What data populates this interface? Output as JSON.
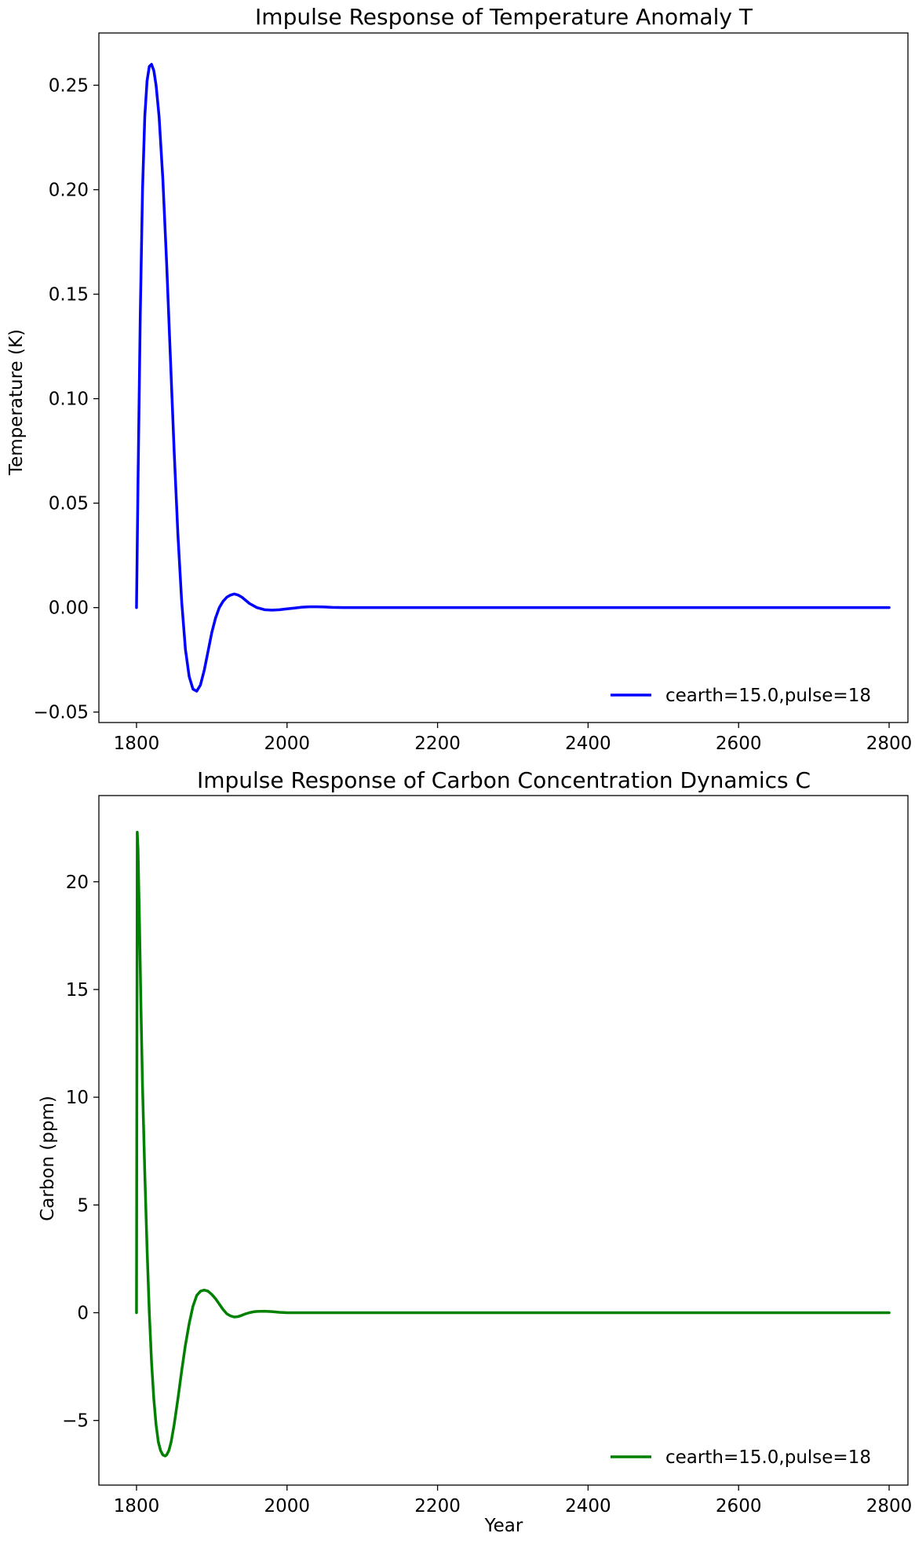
{
  "chart_data": [
    {
      "type": "line",
      "title": "Impulse Response of Temperature Anomaly T",
      "xlabel": "",
      "ylabel": "Temperature (K)",
      "xlim": [
        1750,
        2825
      ],
      "ylim": [
        -0.055,
        0.275
      ],
      "x_ticks": [
        1800,
        2000,
        2200,
        2400,
        2600,
        2800
      ],
      "x_tick_labels": [
        "1800",
        "2000",
        "2200",
        "2400",
        "2600",
        "2800"
      ],
      "y_ticks": [
        -0.05,
        0.0,
        0.05,
        0.1,
        0.15,
        0.2,
        0.25
      ],
      "y_tick_labels": [
        "−0.05",
        "0.00",
        "0.05",
        "0.10",
        "0.15",
        "0.20",
        "0.25"
      ],
      "grid": false,
      "legend_position": "lower-right",
      "series": [
        {
          "name": "cearth=15.0,pulse=18",
          "color": "#0000ff",
          "x": [
            1800,
            1802,
            1805,
            1808,
            1811,
            1814,
            1817,
            1820,
            1823,
            1826,
            1830,
            1835,
            1840,
            1845,
            1850,
            1855,
            1860,
            1865,
            1870,
            1875,
            1880,
            1885,
            1890,
            1895,
            1900,
            1905,
            1910,
            1915,
            1920,
            1925,
            1930,
            1935,
            1940,
            1945,
            1950,
            1960,
            1970,
            1980,
            1990,
            2000,
            2010,
            2020,
            2030,
            2040,
            2050,
            2060,
            2075,
            2100,
            2150,
            2200,
            2300,
            2400,
            2500,
            2600,
            2700,
            2800
          ],
          "y": [
            0.0,
            0.06,
            0.14,
            0.2,
            0.235,
            0.252,
            0.259,
            0.26,
            0.257,
            0.25,
            0.235,
            0.205,
            0.165,
            0.12,
            0.075,
            0.035,
            0.003,
            -0.02,
            -0.033,
            -0.039,
            -0.04,
            -0.037,
            -0.03,
            -0.021,
            -0.012,
            -0.005,
            0.0,
            0.003,
            0.005,
            0.006,
            0.0065,
            0.006,
            0.005,
            0.0035,
            0.002,
            0.0,
            -0.001,
            -0.0012,
            -0.001,
            -0.0006,
            -0.0002,
            0.0002,
            0.0004,
            0.0004,
            0.0003,
            0.0001,
            0.0,
            0.0,
            0.0,
            0.0,
            0.0,
            0.0,
            0.0,
            0.0,
            0.0,
            0.0
          ]
        }
      ]
    },
    {
      "type": "line",
      "title": "Impulse Response of Carbon Concentration Dynamics C",
      "xlabel": "Year",
      "ylabel": "Carbon (ppm)",
      "xlim": [
        1750,
        2825
      ],
      "ylim": [
        -8.0,
        24.0
      ],
      "x_ticks": [
        1800,
        2000,
        2200,
        2400,
        2600,
        2800
      ],
      "x_tick_labels": [
        "1800",
        "2000",
        "2200",
        "2400",
        "2600",
        "2800"
      ],
      "y_ticks": [
        -5,
        0,
        5,
        10,
        15,
        20
      ],
      "y_tick_labels": [
        "−5",
        "0",
        "5",
        "10",
        "15",
        "20"
      ],
      "grid": false,
      "legend_position": "lower-right",
      "series": [
        {
          "name": "cearth=15.0,pulse=18",
          "color": "#008000",
          "x": [
            1800,
            1801,
            1802,
            1804,
            1806,
            1808,
            1811,
            1814,
            1817,
            1820,
            1823,
            1826,
            1829,
            1832,
            1835,
            1838,
            1840,
            1843,
            1846,
            1850,
            1855,
            1860,
            1865,
            1870,
            1875,
            1880,
            1885,
            1890,
            1895,
            1900,
            1905,
            1910,
            1915,
            1920,
            1925,
            1930,
            1935,
            1940,
            1945,
            1950,
            1955,
            1960,
            1970,
            1980,
            1990,
            2000,
            2010,
            2020,
            2030,
            2040,
            2050,
            2070,
            2100,
            2150,
            2200,
            2300,
            2400,
            2500,
            2600,
            2700,
            2800
          ],
          "y": [
            0.0,
            22.3,
            21.5,
            18.0,
            14.0,
            10.5,
            6.5,
            3.0,
            0.0,
            -2.3,
            -4.0,
            -5.2,
            -6.0,
            -6.4,
            -6.6,
            -6.65,
            -6.6,
            -6.4,
            -6.0,
            -5.2,
            -4.0,
            -2.7,
            -1.5,
            -0.5,
            0.3,
            0.8,
            1.0,
            1.05,
            1.0,
            0.85,
            0.65,
            0.4,
            0.15,
            -0.05,
            -0.15,
            -0.2,
            -0.18,
            -0.12,
            -0.05,
            0.0,
            0.04,
            0.06,
            0.07,
            0.05,
            0.02,
            0.0,
            0.0,
            0.0,
            0.0,
            0.0,
            0.0,
            0.0,
            0.0,
            0.0,
            0.0,
            0.0,
            0.0,
            0.0,
            0.0,
            0.0,
            0.0
          ]
        }
      ]
    }
  ]
}
